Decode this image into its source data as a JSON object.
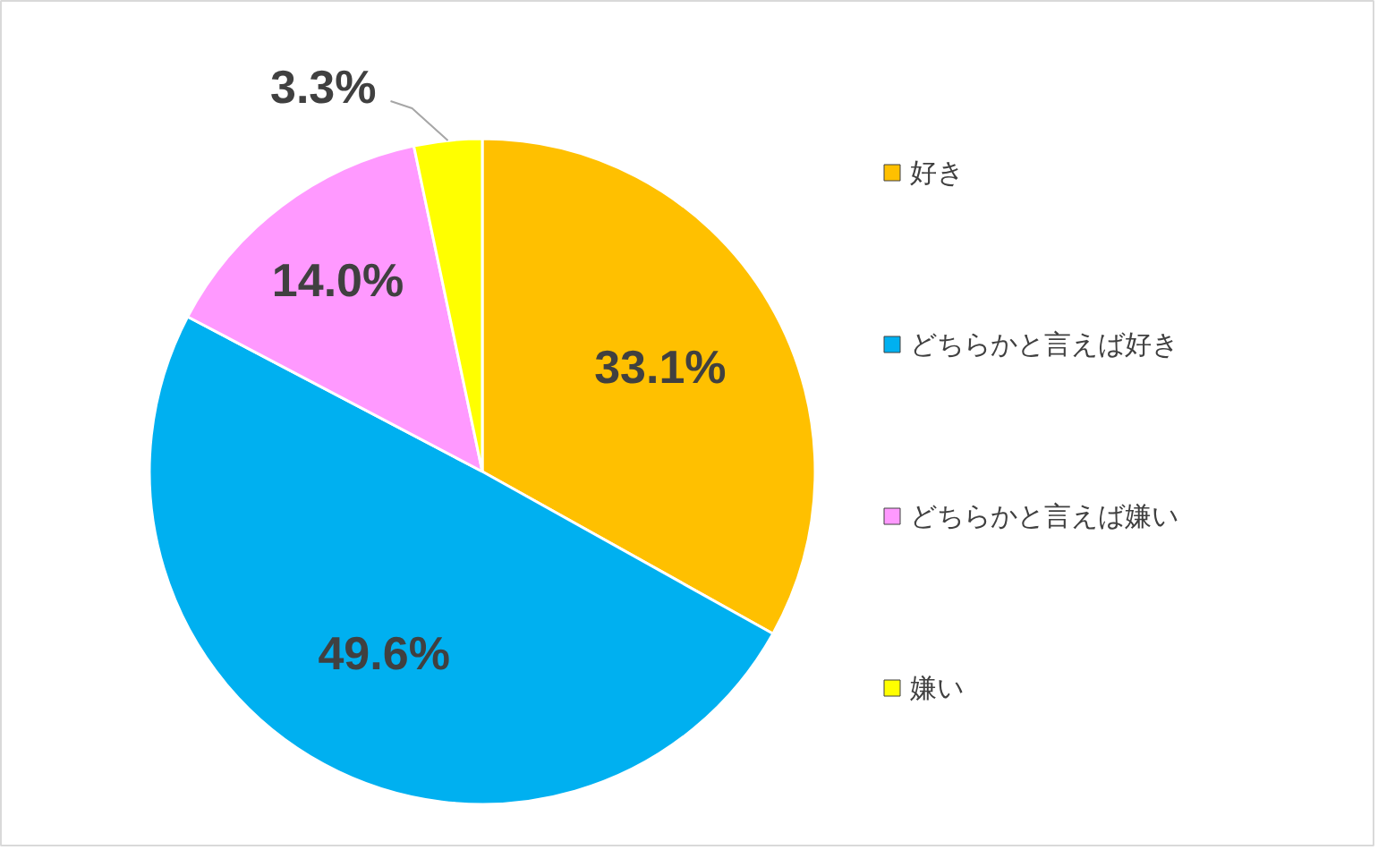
{
  "chart_data": {
    "type": "pie",
    "categories": [
      "好き",
      "どちらかと言えば好き",
      "どちらかと言えば嫌い",
      "嫌い"
    ],
    "values": [
      33.1,
      49.6,
      14.0,
      3.3
    ],
    "colors": [
      "#ffc000",
      "#00b0f0",
      "#ff99ff",
      "#ffff00"
    ],
    "value_labels": [
      "33.1%",
      "49.6%",
      "14.0%",
      "3.3%"
    ],
    "legend": "right"
  }
}
